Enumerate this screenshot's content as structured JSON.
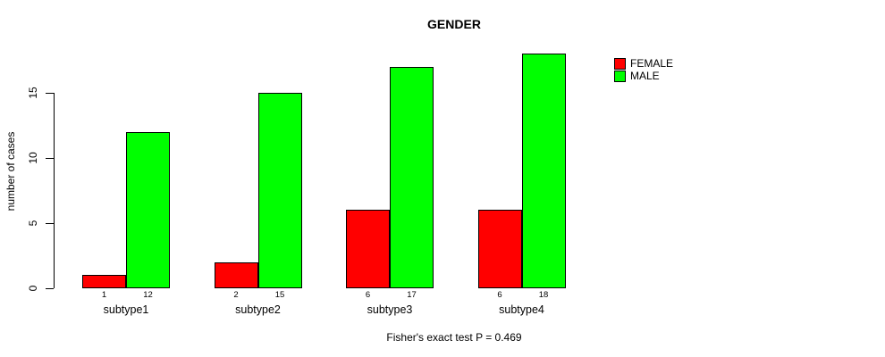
{
  "chart_data": {
    "type": "bar",
    "title": "GENDER",
    "xlabel": "",
    "ylabel": "number of cases",
    "categories": [
      "subtype1",
      "subtype2",
      "subtype3",
      "subtype4"
    ],
    "series": [
      {
        "name": "FEMALE",
        "color": "#ff0000",
        "values": [
          1,
          2,
          6,
          6
        ]
      },
      {
        "name": "MALE",
        "color": "#00ff00",
        "values": [
          12,
          15,
          17,
          18
        ]
      }
    ],
    "yticks": [
      0,
      5,
      10,
      15
    ],
    "ylim": [
      0,
      18.6
    ],
    "grid": false,
    "legend_position": "right-outside",
    "bar_value_labels": true,
    "annotation": "Fisher's exact test P = 0.469"
  }
}
